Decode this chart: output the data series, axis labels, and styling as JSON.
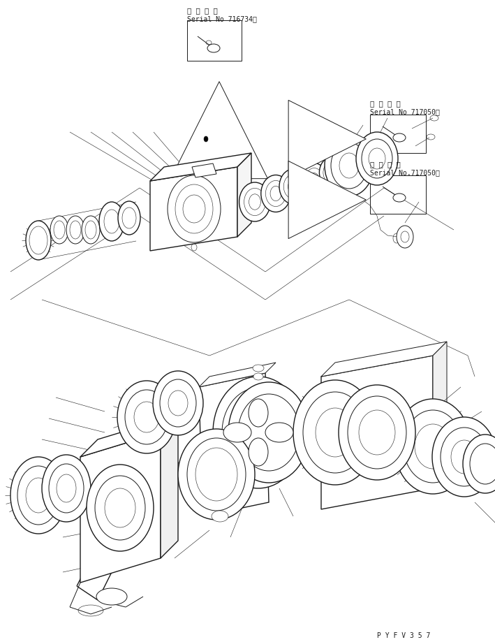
{
  "bg_color": "#ffffff",
  "line_color": "#1a1a1a",
  "fig_width": 7.09,
  "fig_height": 9.2,
  "dpi": 100,
  "serial_box1_line1": "適 用 号 機",
  "serial_box1_line2": "Serial No 716734～",
  "serial_box2_line1": "適 用 号 機",
  "serial_box2_line2": "Serial No 717050～",
  "serial_box3_line1": "適 用 号 機",
  "serial_box3_line2": "Serial No.717050～",
  "watermark": "P Y F V 3 5 7"
}
